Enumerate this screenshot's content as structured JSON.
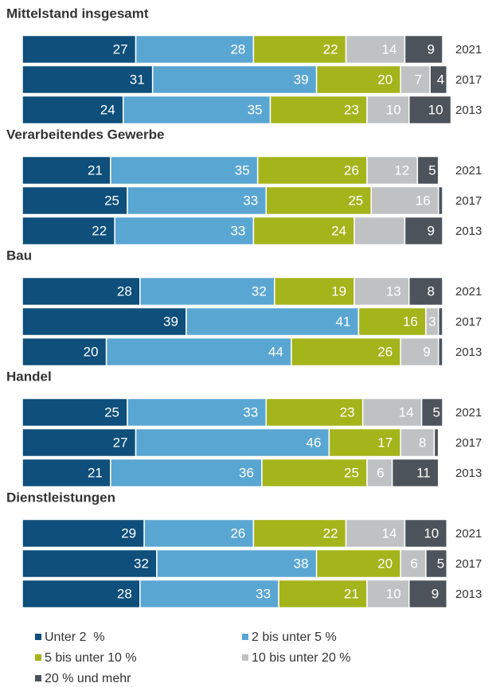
{
  "legend": {
    "names": [
      "Unter 2  %",
      "2 bis unter 5 %",
      "5 bis unter 10 %",
      "10 bis unter 20 %",
      "20 % und mehr"
    ],
    "colors": [
      "#0e4f7b",
      "#5aa6d3",
      "#a4b41b",
      "#bfc1c3",
      "#4d535a"
    ]
  },
  "chart_data": [
    {
      "type": "bar",
      "orientation": "horizontal",
      "stacked": true,
      "title": "Mittelstand insgesamt",
      "categories": [
        "2021",
        "2017",
        "2013"
      ],
      "xlim": [
        0,
        100
      ],
      "series": [
        {
          "values": [
            27,
            31,
            24
          ]
        },
        {
          "values": [
            28,
            39,
            35
          ]
        },
        {
          "values": [
            22,
            20,
            23
          ]
        },
        {
          "values": [
            14,
            7,
            10
          ]
        },
        {
          "values": [
            9,
            4,
            10
          ]
        }
      ]
    },
    {
      "type": "bar",
      "orientation": "horizontal",
      "stacked": true,
      "title": "Verarbeitendes Gewerbe",
      "categories": [
        "2021",
        "2017",
        "2013"
      ],
      "xlim": [
        0,
        100
      ],
      "series": [
        {
          "values": [
            21,
            25,
            22
          ]
        },
        {
          "values": [
            35,
            33,
            33
          ]
        },
        {
          "values": [
            26,
            25,
            24
          ]
        },
        {
          "values": [
            12,
            16,
            12
          ],
          "value_labels_shown": [
            true,
            true,
            false
          ]
        },
        {
          "values": [
            5,
            1,
            9
          ],
          "value_labels_shown": [
            true,
            false,
            true
          ]
        }
      ]
    },
    {
      "type": "bar",
      "orientation": "horizontal",
      "stacked": true,
      "title": "Bau",
      "categories": [
        "2021",
        "2017",
        "2013"
      ],
      "xlim": [
        0,
        100
      ],
      "series": [
        {
          "values": [
            28,
            39,
            20
          ]
        },
        {
          "values": [
            32,
            41,
            44
          ]
        },
        {
          "values": [
            19,
            16,
            26
          ]
        },
        {
          "values": [
            13,
            3,
            9
          ]
        },
        {
          "values": [
            8,
            1,
            1
          ],
          "value_labels_shown": [
            true,
            false,
            false
          ]
        }
      ]
    },
    {
      "type": "bar",
      "orientation": "horizontal",
      "stacked": true,
      "title": "Handel",
      "categories": [
        "2021",
        "2017",
        "2013"
      ],
      "xlim": [
        0,
        100
      ],
      "series": [
        {
          "values": [
            25,
            27,
            21
          ]
        },
        {
          "values": [
            33,
            46,
            36
          ]
        },
        {
          "values": [
            23,
            17,
            25
          ]
        },
        {
          "values": [
            14,
            8,
            6
          ]
        },
        {
          "values": [
            5,
            1,
            11
          ],
          "value_labels_shown": [
            true,
            false,
            true
          ]
        }
      ]
    },
    {
      "type": "bar",
      "orientation": "horizontal",
      "stacked": true,
      "title": "Dienstleistungen",
      "categories": [
        "2021",
        "2017",
        "2013"
      ],
      "xlim": [
        0,
        100
      ],
      "series": [
        {
          "values": [
            29,
            32,
            28
          ]
        },
        {
          "values": [
            26,
            38,
            33
          ]
        },
        {
          "values": [
            22,
            20,
            21
          ]
        },
        {
          "values": [
            14,
            6,
            10
          ]
        },
        {
          "values": [
            10,
            5,
            9
          ]
        }
      ]
    }
  ]
}
